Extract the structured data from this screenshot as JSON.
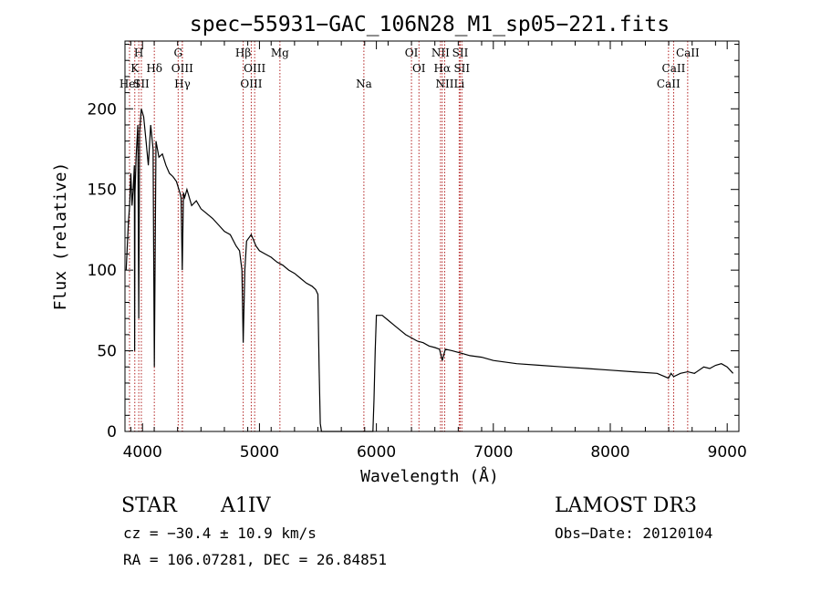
{
  "chart_data": {
    "type": "line",
    "title": "spec−55931−GAC_106N28_M1_sp05−221.fits",
    "xlabel": "Wavelength (Å)",
    "ylabel": "Flux (relative)",
    "xlim": [
      3850,
      9100
    ],
    "ylim": [
      0,
      242
    ],
    "xticks": [
      4000,
      5000,
      6000,
      7000,
      8000,
      9000
    ],
    "yticks": [
      0,
      50,
      100,
      150,
      200
    ],
    "grid": false,
    "series": [
      {
        "name": "flux",
        "x": [
          3860,
          3880,
          3890,
          3900,
          3910,
          3920,
          3930,
          3933,
          3936,
          3945,
          3960,
          3968,
          3975,
          3990,
          4010,
          4030,
          4050,
          4070,
          4090,
          4101,
          4115,
          4140,
          4170,
          4200,
          4230,
          4260,
          4290,
          4320,
          4330,
          4340,
          4350,
          4360,
          4380,
          4420,
          4460,
          4500,
          4550,
          4600,
          4650,
          4700,
          4750,
          4800,
          4830,
          4850,
          4861,
          4875,
          4890,
          4930,
          4970,
          5000,
          5050,
          5100,
          5150,
          5200,
          5250,
          5300,
          5350,
          5400,
          5450,
          5480,
          5500,
          5510,
          5520,
          5530,
          5900,
          5970,
          5980,
          5990,
          6000,
          6050,
          6100,
          6150,
          6200,
          6250,
          6300,
          6350,
          6400,
          6450,
          6500,
          6540,
          6563,
          6590,
          6650,
          6700,
          6800,
          6900,
          7000,
          7200,
          7400,
          7600,
          7800,
          8000,
          8200,
          8400,
          8498,
          8520,
          8542,
          8600,
          8662,
          8720,
          8800,
          8850,
          8900,
          8950,
          9000,
          9050
        ],
        "values": [
          100,
          130,
          140,
          160,
          140,
          150,
          165,
          50,
          148,
          170,
          190,
          70,
          185,
          200,
          195,
          180,
          165,
          190,
          175,
          40,
          180,
          170,
          172,
          165,
          160,
          158,
          155,
          148,
          145,
          100,
          148,
          145,
          150,
          140,
          143,
          138,
          135,
          132,
          128,
          124,
          122,
          115,
          112,
          100,
          55,
          100,
          118,
          122,
          115,
          112,
          110,
          108,
          105,
          103,
          100,
          98,
          95,
          92,
          90,
          88,
          85,
          40,
          5,
          0,
          0,
          0,
          20,
          50,
          72,
          72,
          69,
          66,
          63,
          60,
          58,
          56,
          55,
          53,
          52,
          51,
          44,
          51,
          50,
          49,
          47,
          46,
          44,
          42,
          41,
          40,
          39,
          38,
          37,
          36,
          33,
          36,
          34,
          36,
          37,
          36,
          40,
          39,
          41,
          42,
          40,
          36
        ]
      }
    ],
    "lines": [
      {
        "label": "K",
        "x": 3934,
        "row": 2
      },
      {
        "label": "H",
        "x": 3968,
        "row": 1
      },
      {
        "label": "HeI",
        "x": 3889,
        "row": 3
      },
      {
        "label": "SII",
        "x": 3990,
        "row": 3
      },
      {
        "label": "Hδ",
        "x": 4101,
        "row": 2
      },
      {
        "label": "G",
        "x": 4305,
        "row": 1
      },
      {
        "label": "OIII",
        "x": 4340,
        "row": 2
      },
      {
        "label": "Hγ",
        "x": 4341,
        "row": 3
      },
      {
        "label": "Hβ",
        "x": 4861,
        "row": 1
      },
      {
        "label": "OIII",
        "x": 4959,
        "row": 2
      },
      {
        "label": "OIII",
        "x": 4930,
        "row": 3
      },
      {
        "label": "Mg",
        "x": 5175,
        "row": 1
      },
      {
        "label": "Na",
        "x": 5893,
        "row": 3
      },
      {
        "label": "OI",
        "x": 6300,
        "row": 1
      },
      {
        "label": "OI",
        "x": 6364,
        "row": 2
      },
      {
        "label": "NII",
        "x": 6548,
        "row": 1
      },
      {
        "label": "Hα",
        "x": 6563,
        "row": 2
      },
      {
        "label": "NII",
        "x": 6584,
        "row": 3
      },
      {
        "label": "SII",
        "x": 6717,
        "row": 1
      },
      {
        "label": "SII",
        "x": 6731,
        "row": 2
      },
      {
        "label": "Li",
        "x": 6708,
        "row": 3
      },
      {
        "label": "CaII",
        "x": 8662,
        "row": 1
      },
      {
        "label": "CaII",
        "x": 8542,
        "row": 2
      },
      {
        "label": "CaII",
        "x": 8498,
        "row": 3
      }
    ]
  },
  "info": {
    "object_class": "STAR",
    "subclass": "A1IV",
    "survey": "LAMOST DR3",
    "cz": "cz = −30.4 ± 10.9 km/s",
    "obs_date": "Obs−Date: 20120104",
    "coords": "RA = 106.07281, DEC =  26.84851"
  },
  "colors": {
    "line": "#000000",
    "marker": "#b22222"
  }
}
